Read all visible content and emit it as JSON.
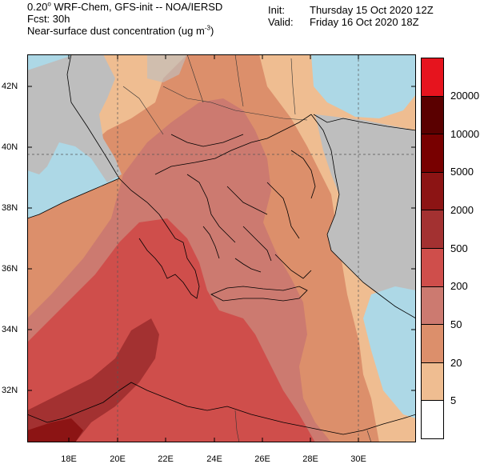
{
  "header": {
    "line1_res": "0.20",
    "line1_rest": " WRF-Chem, GFS-init -- NOA/IERSD",
    "fcst": "Fcst: 30h",
    "variable_pre": "Near-surface dust concentration (ug m",
    "variable_exp": "-3",
    "variable_post": ")",
    "init_label": "Init:",
    "init_value": "Thursday 15 Oct 2020  12Z",
    "valid_label": "Valid:",
    "valid_value": "Friday 16 Oct 2020  18Z"
  },
  "axes": {
    "lat_labels": [
      "42N",
      "40N",
      "38N",
      "36N",
      "34N",
      "32N"
    ],
    "lon_labels": [
      "18E",
      "20E",
      "22E",
      "24E",
      "26E",
      "28E",
      "30E"
    ]
  },
  "map_data": {
    "lon_range": [
      16.5,
      32.5
    ],
    "lat_range": [
      30.3,
      43.2
    ],
    "gridlines_dashed": [
      {
        "lon": 20
      },
      {
        "lon": 30
      },
      {
        "lat": 40
      }
    ],
    "sea_color": "#add8e6",
    "land_nodata_color": "#bebebe"
  },
  "colorbar": {
    "labels_top_to_bottom": [
      "20000",
      "10000",
      "5000",
      "2000",
      "500",
      "200",
      "50",
      "20",
      "5"
    ],
    "colors_top_to_bottom": [
      "#e6141e",
      "#5a0000",
      "#780000",
      "#8c1414",
      "#a33131",
      "#cf4e4b",
      "#cc7a70",
      "#dc8f6b",
      "#efbd91",
      "#ffffff"
    ]
  }
}
